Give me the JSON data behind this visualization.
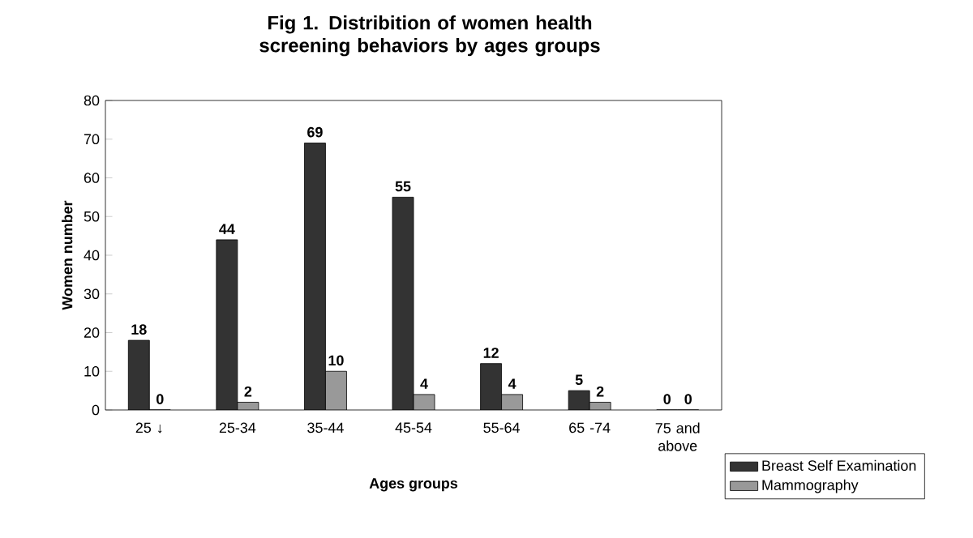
{
  "chart_data": {
    "type": "bar",
    "title": "Fig 1. Distribition of women health screening behaviors by ages groups",
    "xlabel": "Ages groups",
    "ylabel": "Women number",
    "categories": [
      "25 ↓",
      "25-34",
      "35-44",
      "45-54",
      "55-64",
      "65 -74",
      "75 and above"
    ],
    "series": [
      {
        "name": "Breast Self Examination",
        "color": "#333333",
        "values": [
          18,
          44,
          69,
          55,
          12,
          5,
          0
        ]
      },
      {
        "name": "Mammography",
        "color": "#999999",
        "values": [
          0,
          2,
          10,
          4,
          4,
          2,
          0
        ]
      }
    ],
    "ylim": [
      0,
      80
    ],
    "yticks": [
      0,
      10,
      20,
      30,
      40,
      50,
      60,
      70,
      80
    ],
    "grid": false,
    "legend": "bottom right",
    "data_labels": true
  }
}
